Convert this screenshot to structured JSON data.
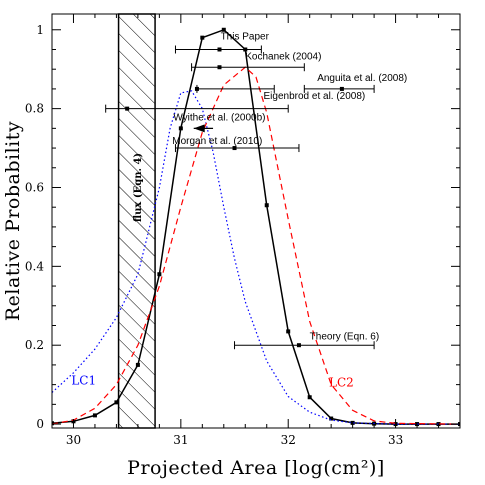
{
  "chart_data": {
    "type": "line",
    "xlabel": "Projected Area [log(cm²)]",
    "ylabel": "Relative Probability",
    "xlim": [
      29.8,
      33.6
    ],
    "ylim": [
      -0.01,
      1.04
    ],
    "x_ticks": [
      {
        "value": 30,
        "label": "30"
      },
      {
        "value": 31,
        "label": "31"
      },
      {
        "value": 32,
        "label": "32"
      },
      {
        "value": 33,
        "label": "33"
      }
    ],
    "y_ticks": [
      {
        "value": 0,
        "label": "0"
      },
      {
        "value": 0.2,
        "label": "0.2"
      },
      {
        "value": 0.4,
        "label": "0.4"
      },
      {
        "value": 0.6,
        "label": "0.6"
      },
      {
        "value": 0.8,
        "label": "0.8"
      },
      {
        "value": 1,
        "label": "1"
      }
    ],
    "shaded_region": {
      "x0": 30.42,
      "x1": 30.76,
      "label": "flux (Eqn. 4)"
    },
    "series": [
      {
        "style": "solid",
        "color": "#000000",
        "markers": true,
        "x": [
          29.8,
          30.0,
          30.2,
          30.4,
          30.6,
          30.8,
          31.0,
          31.2,
          31.4,
          31.6,
          31.8,
          32.0,
          32.2,
          32.4,
          32.6,
          32.8,
          33.0,
          33.2,
          33.4,
          33.6
        ],
        "y": [
          0.002,
          0.007,
          0.022,
          0.055,
          0.15,
          0.38,
          0.75,
          0.98,
          1.0,
          0.95,
          0.555,
          0.235,
          0.068,
          0.014,
          0.003,
          0.001,
          0.0,
          0.0,
          0.0,
          0.0
        ]
      },
      {
        "name": "LC1",
        "style": "dotted",
        "color": "#0000ff",
        "label": "LC1",
        "label_pos": [
          29.98,
          0.1
        ],
        "x": [
          29.8,
          30.0,
          30.2,
          30.4,
          30.6,
          30.8,
          30.9,
          31.0,
          31.1,
          31.2,
          31.3,
          31.4,
          31.5,
          31.6,
          31.8,
          32.0,
          32.2,
          32.4,
          32.6,
          33.0,
          33.6
        ],
        "y": [
          0.08,
          0.13,
          0.19,
          0.27,
          0.38,
          0.6,
          0.75,
          0.84,
          0.845,
          0.8,
          0.69,
          0.55,
          0.42,
          0.31,
          0.16,
          0.07,
          0.03,
          0.01,
          0.003,
          0.0,
          0.0
        ]
      },
      {
        "name": "LC2",
        "style": "dashed",
        "color": "#ff0000",
        "label": "LC2",
        "label_pos": [
          32.38,
          0.095
        ],
        "x": [
          29.8,
          30.0,
          30.2,
          30.4,
          30.6,
          30.8,
          31.0,
          31.2,
          31.4,
          31.6,
          31.7,
          31.8,
          32.0,
          32.2,
          32.4,
          32.6,
          32.8,
          33.0,
          33.6
        ],
        "y": [
          0.0,
          0.01,
          0.04,
          0.1,
          0.2,
          0.35,
          0.55,
          0.74,
          0.86,
          0.905,
          0.88,
          0.79,
          0.52,
          0.26,
          0.1,
          0.035,
          0.008,
          0.002,
          0.0
        ]
      }
    ],
    "measurements": [
      {
        "label": "This Paper",
        "x": 31.36,
        "xerr_low": 30.95,
        "xerr_high": 31.75,
        "y": 0.95,
        "label_x": 31.37,
        "label_y": 0.975
      },
      {
        "label": "Kochanek (2004)",
        "x": 31.36,
        "xerr_low": 31.1,
        "xerr_high": 32.15,
        "y": 0.905,
        "label_x": 31.6,
        "label_y": 0.925
      },
      {
        "label": "Anguita et al. (2008)",
        "x": 32.5,
        "xerr_low": 32.15,
        "xerr_high": 32.8,
        "y": 0.85,
        "label_x": 32.27,
        "label_y": 0.87
      },
      {
        "label": "Eigenbrod et al. (2008)",
        "x": 31.15,
        "xerr_low": 31.15,
        "xerr_high": 31.87,
        "y": 0.85,
        "label_x": 31.77,
        "label_y": 0.825
      },
      {
        "label": "Wyithe et al. (2000b)",
        "x": 30.5,
        "xerr_low": 30.3,
        "xerr_high": 32.0,
        "y": 0.8,
        "label_x": 30.93,
        "label_y": 0.77
      },
      {
        "label": "Morgan et al. (2010)",
        "x": 31.5,
        "xerr_low": 30.95,
        "xerr_high": 32.1,
        "y": 0.7,
        "label_x": 30.92,
        "label_y": 0.71
      },
      {
        "label": "Theory (Eqn. 6)",
        "x": 32.1,
        "xerr_low": 31.5,
        "xerr_high": 32.8,
        "y": 0.2,
        "label_x": 32.2,
        "label_y": 0.215
      }
    ],
    "upper_limit": {
      "x": 31.3,
      "x_tip": 31.12,
      "y": 0.75
    }
  }
}
